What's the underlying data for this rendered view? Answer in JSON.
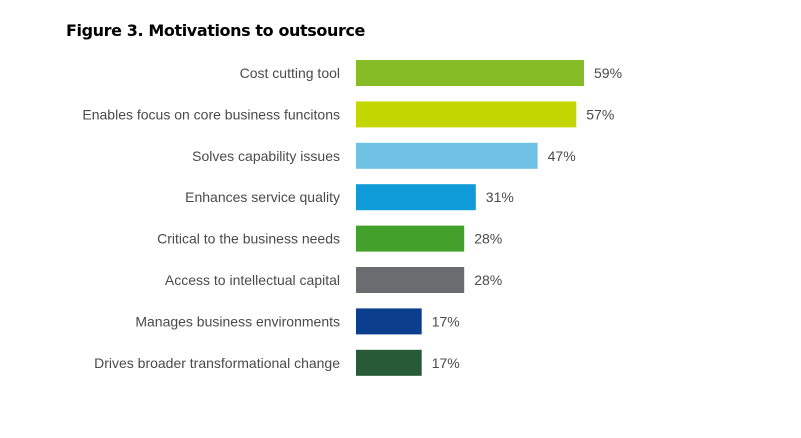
{
  "figure_title": "Figure 3. Motivations to outsource",
  "chart_data": {
    "type": "bar",
    "orientation": "horizontal",
    "title": "Figure 3. Motivations to outsource",
    "xlabel": "",
    "ylabel": "",
    "xlim": [
      0,
      59
    ],
    "grid": false,
    "legend": "none",
    "value_suffix": "%",
    "categories": [
      "Cost cutting tool",
      "Enables focus on core business funcitons",
      "Solves capability issues",
      "Enhances service quality",
      "Critical to the business needs",
      "Access to intellectual capital",
      "Manages business environments",
      "Drives broader transformational change"
    ],
    "values": [
      59,
      57,
      47,
      31,
      28,
      28,
      17,
      17
    ],
    "labels": [
      "59%",
      "57%",
      "47%",
      "31%",
      "28%",
      "28%",
      "17%",
      "17%"
    ],
    "colors": [
      "#86bc25",
      "#c4d600",
      "#6fc2e4",
      "#0f9bd7",
      "#43a02b",
      "#6b6c70",
      "#0c3e8e",
      "#275a36"
    ]
  }
}
